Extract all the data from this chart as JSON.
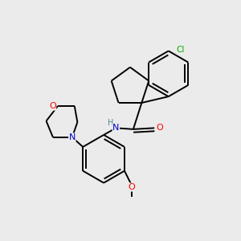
{
  "bg_color": "#ebebeb",
  "line_color": "#000000",
  "bond_lw": 1.4,
  "atom_colors": {
    "O": "#ff0000",
    "N": "#0000cc",
    "Cl": "#00aa00",
    "H": "#4a8888",
    "C": "#000000"
  },
  "figsize": [
    3.0,
    3.0
  ],
  "dpi": 100
}
